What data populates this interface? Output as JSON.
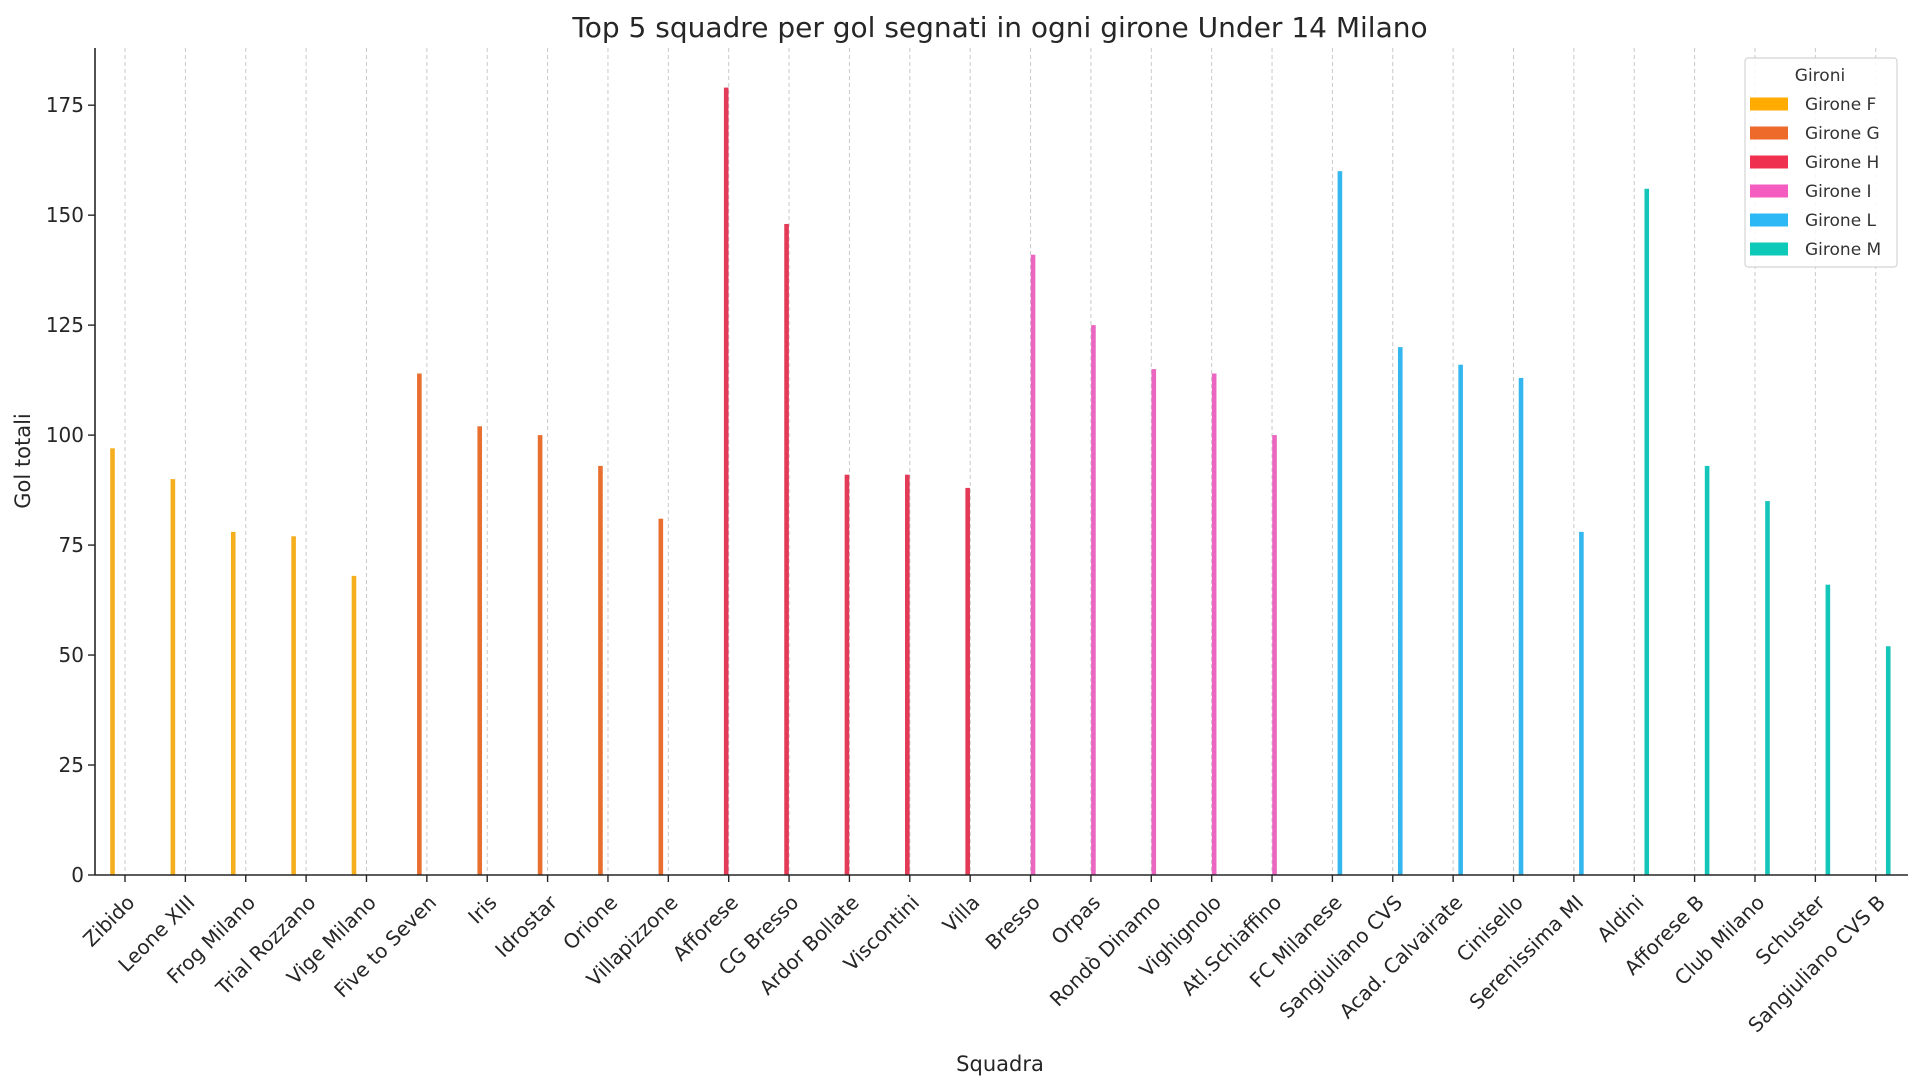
{
  "chart_data": {
    "type": "bar",
    "title": "Top 5 squadre per gol segnati in ogni girone Under 14 Milano",
    "xlabel": "Squadra",
    "ylabel": "Gol totali",
    "ylim": [
      0,
      188
    ],
    "yticks": [
      0,
      25,
      50,
      75,
      100,
      125,
      150,
      175
    ],
    "grid": "x-dashed",
    "legend": {
      "title": "Gironi",
      "placement": "top-right"
    },
    "categories": [
      "Zibido",
      "Leone XIII",
      "Frog Milano",
      "Trial Rozzano",
      "Vige Milano",
      "Five to Seven",
      "Iris",
      "Idrostar",
      "Orione",
      "Villapizzone",
      "Afforese",
      "CG Bresso",
      "Ardor Bollate",
      "Viscontini",
      "Villa",
      "Bresso",
      "Orpas",
      "Rondò Dinamo",
      "Vighignolo",
      "Atl.Schiaffino",
      "FC Milanese",
      "Sangiuliano CVS",
      "Acad. Calvairate",
      "Cinisello",
      "Serenissima MI",
      "Aldini",
      "Afforese B",
      "Club Milano",
      "Schuster",
      "Sangiuliano CVS B"
    ],
    "series": [
      {
        "name": "Girone F",
        "color": "#F5AE1E",
        "legend_color": "#FFAB00",
        "values": [
          97,
          90,
          78,
          77,
          68,
          null,
          null,
          null,
          null,
          null,
          null,
          null,
          null,
          null,
          null,
          null,
          null,
          null,
          null,
          null,
          null,
          null,
          null,
          null,
          null,
          null,
          null,
          null,
          null,
          null
        ]
      },
      {
        "name": "Girone G",
        "color": "#E86F30",
        "legend_color": "#EE6A2A",
        "values": [
          null,
          null,
          null,
          null,
          null,
          114,
          102,
          100,
          93,
          81,
          null,
          null,
          null,
          null,
          null,
          null,
          null,
          null,
          null,
          null,
          null,
          null,
          null,
          null,
          null,
          null,
          null,
          null,
          null,
          null
        ]
      },
      {
        "name": "Girone H",
        "color": "#E33A57",
        "legend_color": "#F0304F",
        "values": [
          null,
          null,
          null,
          null,
          null,
          null,
          null,
          null,
          null,
          null,
          179,
          148,
          91,
          91,
          88,
          null,
          null,
          null,
          null,
          null,
          null,
          null,
          null,
          null,
          null,
          null,
          null,
          null,
          null,
          null
        ]
      },
      {
        "name": "Girone I",
        "color": "#EA66C0",
        "legend_color": "#F55CC0",
        "values": [
          null,
          null,
          null,
          null,
          null,
          null,
          null,
          null,
          null,
          null,
          null,
          null,
          null,
          null,
          null,
          141,
          125,
          115,
          114,
          100,
          null,
          null,
          null,
          null,
          null,
          null,
          null,
          null,
          null,
          null
        ]
      },
      {
        "name": "Girone L",
        "color": "#34B7EE",
        "legend_color": "#2CB8F5",
        "values": [
          null,
          null,
          null,
          null,
          null,
          null,
          null,
          null,
          null,
          null,
          null,
          null,
          null,
          null,
          null,
          null,
          null,
          null,
          null,
          null,
          160,
          120,
          116,
          113,
          78,
          null,
          null,
          null,
          null,
          null
        ]
      },
      {
        "name": "Girone M",
        "color": "#14C6BA",
        "legend_color": "#0CC9B8",
        "values": [
          null,
          null,
          null,
          null,
          null,
          null,
          null,
          null,
          null,
          null,
          null,
          null,
          null,
          null,
          null,
          null,
          null,
          null,
          null,
          null,
          null,
          null,
          null,
          null,
          null,
          156,
          93,
          85,
          66,
          52
        ]
      }
    ]
  }
}
